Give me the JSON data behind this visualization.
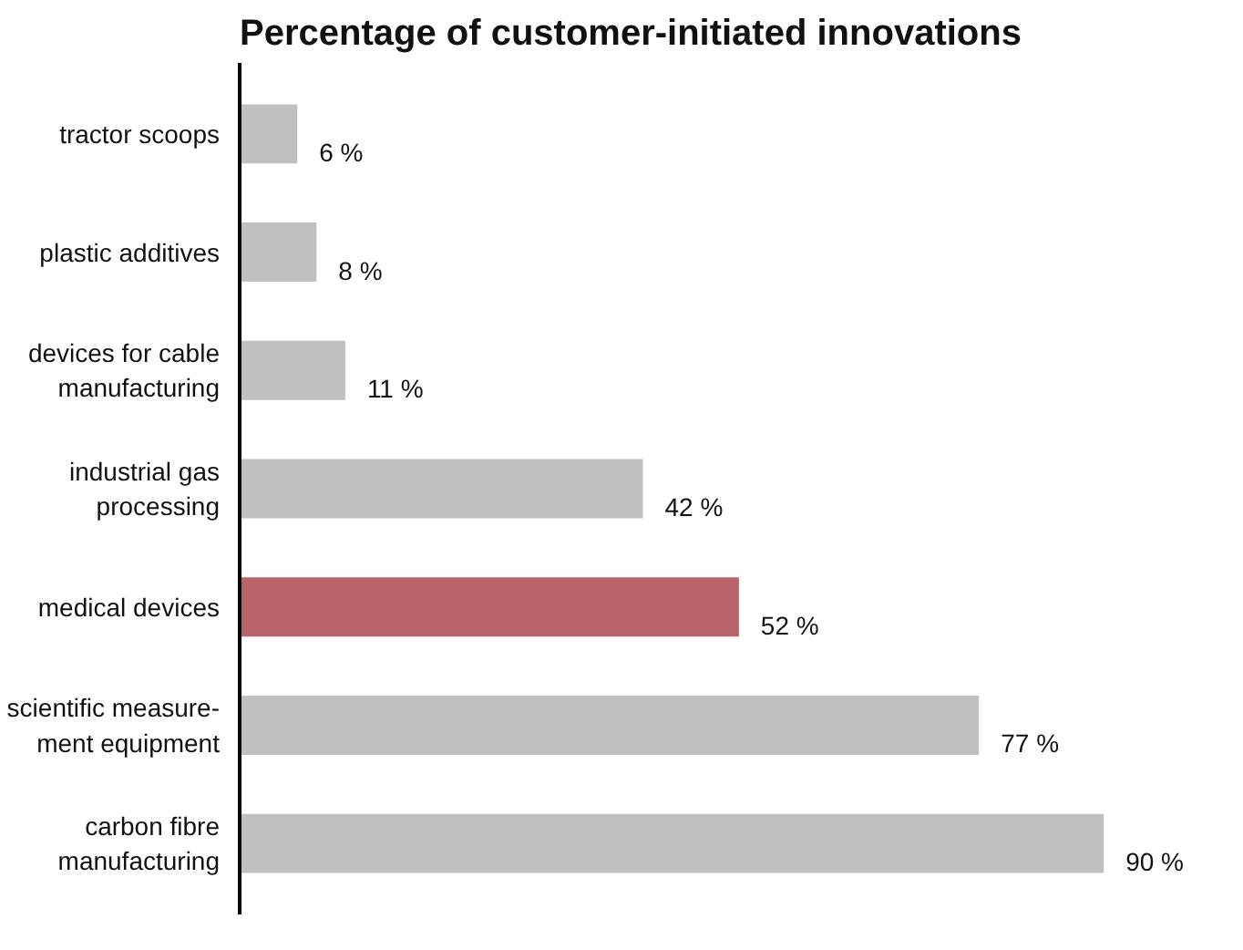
{
  "chart_data": {
    "type": "bar",
    "orientation": "horizontal",
    "title": "Percentage of customer-initiated innovations",
    "categories": [
      "tractor scoops",
      "plastic additives",
      "devices for cable\nmanufacturing",
      "industrial gas\nprocessing",
      "medical devices",
      "scientific measure-\nment equipment",
      "carbon fibre\nmanufacturing"
    ],
    "values": [
      6,
      8,
      11,
      42,
      52,
      77,
      90
    ],
    "colors": [
      "#c0c0c0",
      "#c0c0c0",
      "#c0c0c0",
      "#c0c0c0",
      "#b9646a",
      "#c0c0c0",
      "#c0c0c0"
    ],
    "value_labels": [
      "6 %",
      "8 %",
      "11 %",
      "42 %",
      "52 %",
      "77 %",
      "90 %"
    ]
  }
}
